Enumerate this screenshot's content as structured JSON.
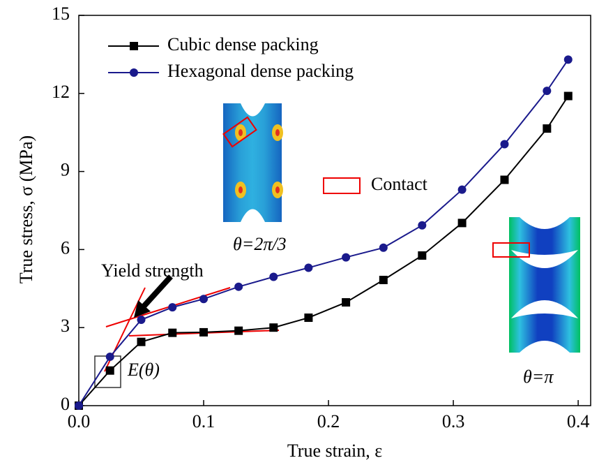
{
  "chart_data": {
    "type": "line",
    "x_label": "True strain, ε",
    "y_label": "True stress, σ (MPa)",
    "x": [
      0,
      0.025,
      0.05,
      0.075,
      0.1,
      0.128,
      0.156,
      0.184,
      0.214,
      0.244,
      0.275,
      0.307,
      0.341,
      0.375,
      0.392
    ],
    "series": [
      {
        "name": "Cubic dense packing",
        "color": "#000000",
        "marker": "square",
        "values": [
          0,
          1.35,
          2.45,
          2.8,
          2.82,
          2.88,
          3.0,
          3.38,
          3.97,
          4.83,
          5.77,
          7.02,
          8.68,
          10.65,
          11.9
        ]
      },
      {
        "name": "Hexagonal dense packing",
        "color": "#1a1a8c",
        "marker": "circle",
        "values": [
          0,
          1.88,
          3.3,
          3.78,
          4.1,
          4.57,
          4.95,
          5.3,
          5.7,
          6.07,
          6.93,
          8.3,
          10.05,
          12.1,
          13.3
        ]
      }
    ],
    "xlim": [
      0,
      0.41
    ],
    "ylim": [
      0,
      15
    ],
    "xticks": [
      {
        "value": 0,
        "label": "0.0"
      },
      0.1,
      0.2,
      0.3,
      0.4
    ],
    "yticks": [
      0,
      3,
      6,
      9,
      12,
      15
    ],
    "legend_loc": "upper left",
    "annotations": [
      "Yield strength",
      "E(θ)",
      "Contact",
      "θ=2π/3",
      "θ=π"
    ]
  }
}
